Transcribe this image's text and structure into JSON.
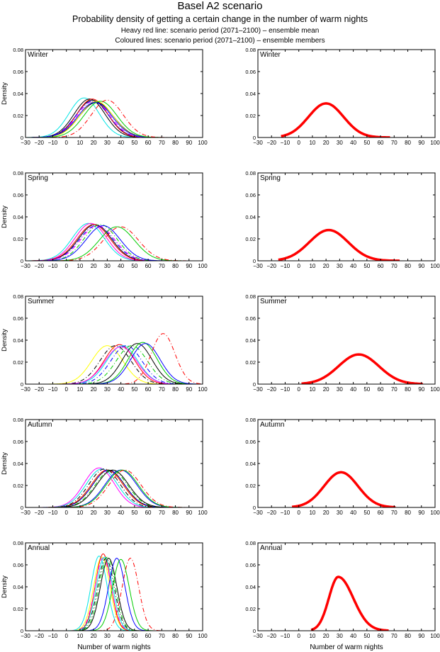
{
  "titles": {
    "main": "Basel A2 scenario",
    "subtitle": "Probability density of getting a certain change in the number of warm nights",
    "line1": "Heavy red line: scenario period (2071–2100) – ensemble mean",
    "line2": "Coloured lines: scenario period (2071–2100) – ensemble members"
  },
  "chart_data": {
    "type": "line",
    "xlabel": "Number of warm nights",
    "ylabel": "Density",
    "xlim": [
      -30,
      100
    ],
    "ylim": [
      0,
      0.08
    ],
    "xticks": [
      -30,
      -20,
      -10,
      0,
      10,
      20,
      30,
      40,
      50,
      60,
      70,
      80,
      90,
      100
    ],
    "yticks": [
      0,
      0.02,
      0.04,
      0.06,
      0.08
    ],
    "ytick_labels": [
      "0",
      "0.02",
      "0.04",
      "0.06",
      "0.08"
    ],
    "grid": false,
    "panels": [
      {
        "season": "Winter",
        "members": [
          {
            "color": "#00e5e5",
            "style": "solid",
            "mean": 13,
            "peak": 0.036
          },
          {
            "color": "#000000",
            "style": "solid",
            "mean": 17,
            "peak": 0.035
          },
          {
            "color": "#000000",
            "style": "solid",
            "mean": 19,
            "peak": 0.034
          },
          {
            "color": "#ff0000",
            "style": "solid",
            "mean": 19,
            "peak": 0.035
          },
          {
            "color": "#0000ff",
            "style": "dashdot",
            "mean": 19,
            "peak": 0.033
          },
          {
            "color": "#ff00ff",
            "style": "dashdot",
            "mean": 20,
            "peak": 0.033
          },
          {
            "color": "#000000",
            "style": "solid",
            "mean": 22,
            "peak": 0.032
          },
          {
            "color": "#ffff00",
            "style": "solid",
            "mean": 22,
            "peak": 0.033
          },
          {
            "color": "#0000ff",
            "style": "solid",
            "mean": 21,
            "peak": 0.032
          },
          {
            "color": "#00cc00",
            "style": "solid",
            "mean": 25,
            "peak": 0.033
          },
          {
            "color": "#ff0000",
            "style": "dashdot",
            "mean": 30,
            "peak": 0.034
          }
        ],
        "ensemble_mean": {
          "color": "#ff0000",
          "mean": 20,
          "peak": 0.031,
          "range": [
            -13,
            67
          ]
        }
      },
      {
        "season": "Spring",
        "members": [
          {
            "color": "#00e5e5",
            "style": "solid",
            "mean": 16,
            "peak": 0.034
          },
          {
            "color": "#ffff00",
            "style": "solid",
            "mean": 18,
            "peak": 0.034
          },
          {
            "color": "#ff00ff",
            "style": "solid",
            "mean": 18,
            "peak": 0.034
          },
          {
            "color": "#000000",
            "style": "solid",
            "mean": 21,
            "peak": 0.033
          },
          {
            "color": "#ff0000",
            "style": "solid",
            "mean": 20,
            "peak": 0.033
          },
          {
            "color": "#0000ff",
            "style": "dashdot",
            "mean": 22,
            "peak": 0.032
          },
          {
            "color": "#ff00ff",
            "style": "dashdot",
            "mean": 23,
            "peak": 0.032
          },
          {
            "color": "#00cc00",
            "style": "dashdot",
            "mean": 25,
            "peak": 0.033
          },
          {
            "color": "#0000ff",
            "style": "solid",
            "mean": 27,
            "peak": 0.032
          },
          {
            "color": "#00cc00",
            "style": "solid",
            "mean": 37,
            "peak": 0.031
          },
          {
            "color": "#ff0000",
            "style": "dashdot",
            "mean": 40,
            "peak": 0.031
          }
        ],
        "ensemble_mean": {
          "color": "#ff0000",
          "mean": 22,
          "peak": 0.028,
          "range": [
            -15,
            74
          ]
        }
      },
      {
        "season": "Summer",
        "members": [
          {
            "color": "#ffff00",
            "style": "solid",
            "mean": 30,
            "peak": 0.035
          },
          {
            "color": "#000000",
            "style": "dashdot",
            "mean": 36,
            "peak": 0.035
          },
          {
            "color": "#ff0000",
            "style": "solid",
            "mean": 39,
            "peak": 0.036
          },
          {
            "color": "#00e5e5",
            "style": "solid",
            "mean": 41,
            "peak": 0.035
          },
          {
            "color": "#ff00ff",
            "style": "solid",
            "mean": 40,
            "peak": 0.034
          },
          {
            "color": "#0000ff",
            "style": "dashdot",
            "mean": 44,
            "peak": 0.035
          },
          {
            "color": "#00cc00",
            "style": "dashdot",
            "mean": 48,
            "peak": 0.035
          },
          {
            "color": "#000000",
            "style": "solid",
            "mean": 52,
            "peak": 0.037
          },
          {
            "color": "#00cc00",
            "style": "solid",
            "mean": 56,
            "peak": 0.038
          },
          {
            "color": "#0000ff",
            "style": "solid",
            "mean": 58,
            "peak": 0.037
          },
          {
            "color": "#ff0000",
            "style": "dashdot",
            "mean": 71,
            "peak": 0.046
          }
        ],
        "ensemble_mean": {
          "color": "#ff0000",
          "mean": 44,
          "peak": 0.027,
          "range": [
            2,
            91
          ]
        }
      },
      {
        "season": "Autumn",
        "members": [
          {
            "color": "#ff00ff",
            "style": "solid",
            "mean": 24,
            "peak": 0.036
          },
          {
            "color": "#00e5e5",
            "style": "solid",
            "mean": 26,
            "peak": 0.035
          },
          {
            "color": "#000000",
            "style": "dashdot",
            "mean": 28,
            "peak": 0.035
          },
          {
            "color": "#ffff00",
            "style": "solid",
            "mean": 30,
            "peak": 0.034
          },
          {
            "color": "#ff0000",
            "style": "solid",
            "mean": 30,
            "peak": 0.034
          },
          {
            "color": "#000000",
            "style": "solid",
            "mean": 31,
            "peak": 0.034
          },
          {
            "color": "#0000ff",
            "style": "dashdot",
            "mean": 31,
            "peak": 0.034
          },
          {
            "color": "#00cc00",
            "style": "dashdot",
            "mean": 33,
            "peak": 0.034
          },
          {
            "color": "#000000",
            "style": "solid",
            "mean": 34,
            "peak": 0.034
          },
          {
            "color": "#0000ff",
            "style": "solid",
            "mean": 40,
            "peak": 0.034
          },
          {
            "color": "#00cc00",
            "style": "solid",
            "mean": 41,
            "peak": 0.034
          },
          {
            "color": "#ff0000",
            "style": "dashdot",
            "mean": 43,
            "peak": 0.034
          }
        ],
        "ensemble_mean": {
          "color": "#ff0000",
          "mean": 31,
          "peak": 0.032,
          "range": [
            -5,
            71
          ]
        }
      },
      {
        "season": "Annual",
        "members": [
          {
            "color": "#00e5e5",
            "style": "solid",
            "mean": 24,
            "peak": 0.068
          },
          {
            "color": "#ffff00",
            "style": "solid",
            "mean": 26,
            "peak": 0.067
          },
          {
            "color": "#ff0000",
            "style": "solid",
            "mean": 27,
            "peak": 0.07
          },
          {
            "color": "#ff00ff",
            "style": "dashdot",
            "mean": 27,
            "peak": 0.066
          },
          {
            "color": "#000000",
            "style": "dashdot",
            "mean": 29,
            "peak": 0.066
          },
          {
            "color": "#00e5e5",
            "style": "solid",
            "mean": 28,
            "peak": 0.067
          },
          {
            "color": "#000000",
            "style": "solid",
            "mean": 31,
            "peak": 0.066
          },
          {
            "color": "#00cc00",
            "style": "dashdot",
            "mean": 30,
            "peak": 0.067
          },
          {
            "color": "#0000ff",
            "style": "solid",
            "mean": 37,
            "peak": 0.066
          },
          {
            "color": "#00cc00",
            "style": "solid",
            "mean": 40,
            "peak": 0.065
          },
          {
            "color": "#ff0000",
            "style": "dashdot",
            "mean": 47,
            "peak": 0.066
          }
        ],
        "ensemble_mean": {
          "color": "#ff0000",
          "mean": 29,
          "peak": 0.049,
          "range": [
            9,
            66
          ]
        }
      }
    ]
  }
}
